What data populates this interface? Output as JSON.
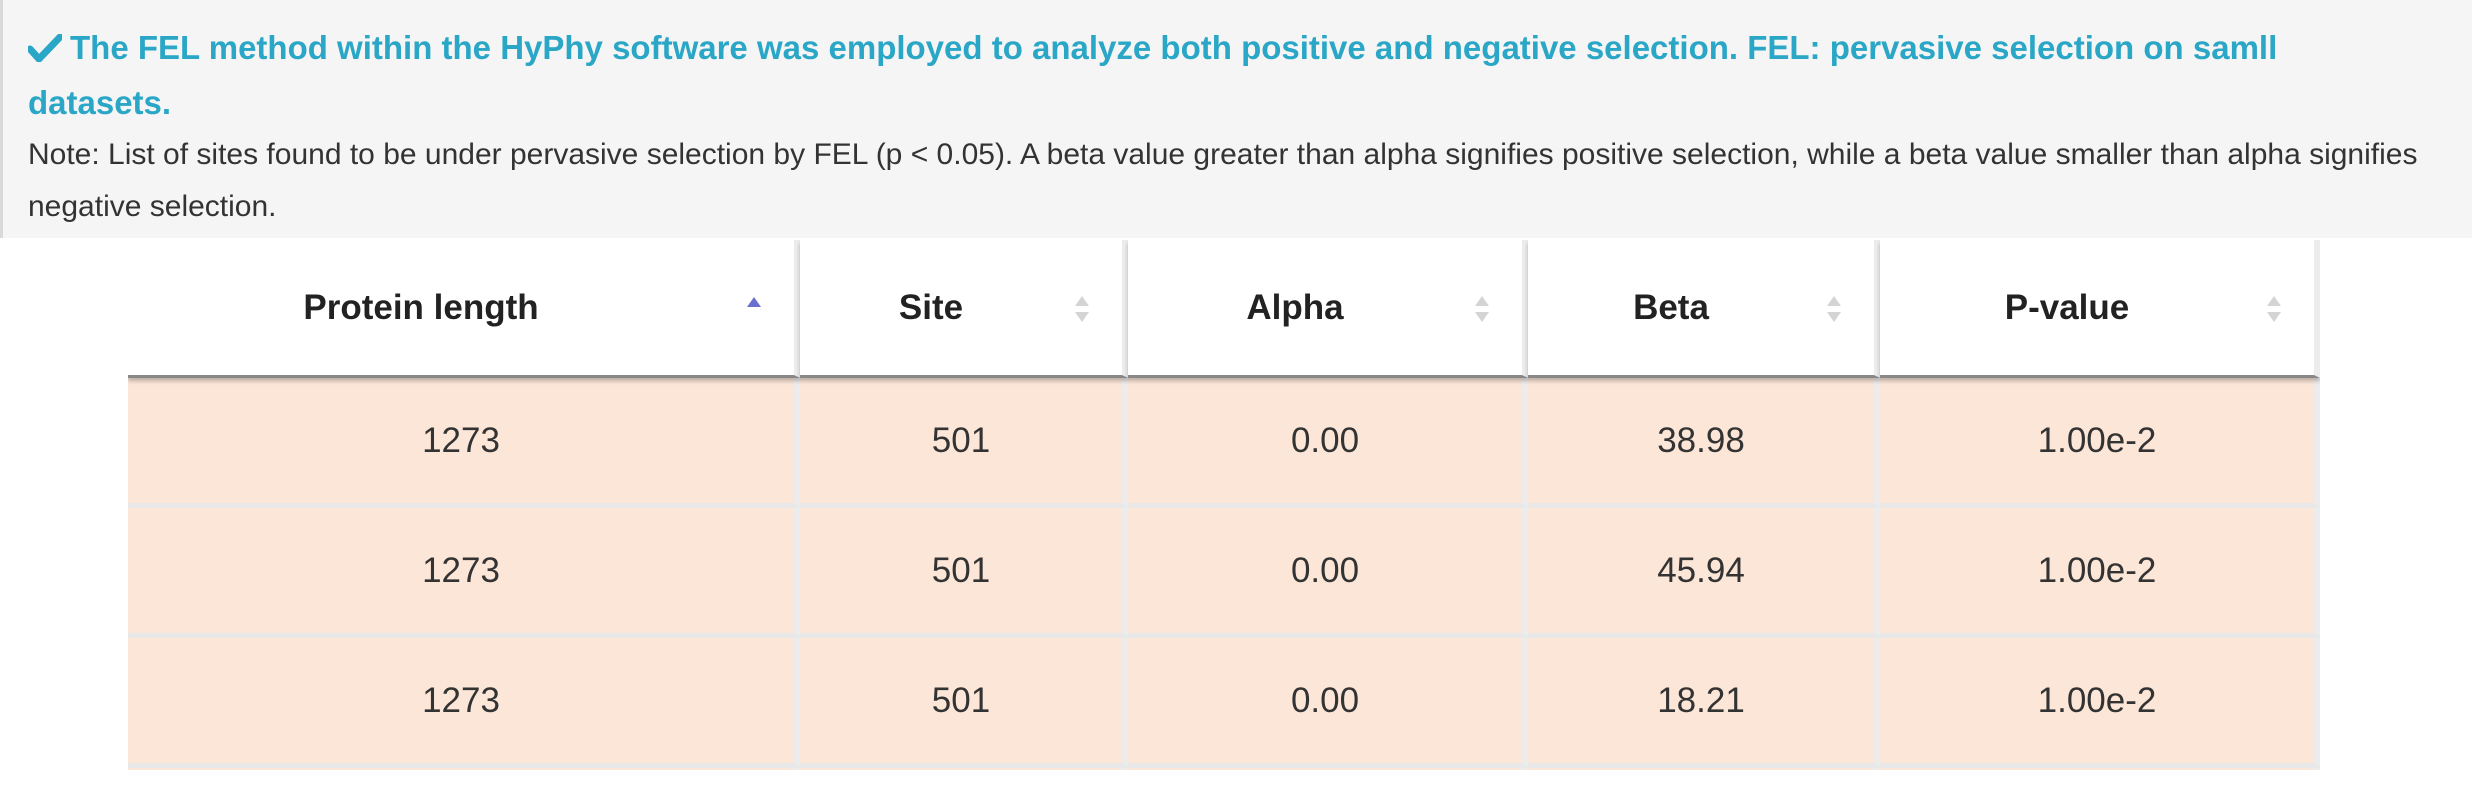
{
  "info": {
    "heading": "The FEL method within the HyPhy software was employed to analyze both positive and negative selection. FEL: pervasive selection on samll datasets.",
    "note": "Note: List of sites found to be under pervasive selection by FEL (p < 0.05). A beta value greater than alpha signifies positive selection, while a beta value smaller than alpha signifies negative selection.",
    "icon": "check-icon",
    "accent_color": "#2aa6c6"
  },
  "table": {
    "columns": [
      {
        "label": "Protein length",
        "sort": "ascending"
      },
      {
        "label": "Site",
        "sort": "none"
      },
      {
        "label": "Alpha",
        "sort": "none"
      },
      {
        "label": "Beta",
        "sort": "none"
      },
      {
        "label": "P-value",
        "sort": "none"
      }
    ],
    "rows": [
      [
        "1273",
        "501",
        "0.00",
        "38.98",
        "1.00e-2"
      ],
      [
        "1273",
        "501",
        "0.00",
        "45.94",
        "1.00e-2"
      ],
      [
        "1273",
        "501",
        "0.00",
        "18.21",
        "1.00e-2"
      ]
    ],
    "row_color": "#fce6d8",
    "sort_active_color": "#6a6fcf",
    "sort_inactive_color": "#d4d4d4"
  }
}
